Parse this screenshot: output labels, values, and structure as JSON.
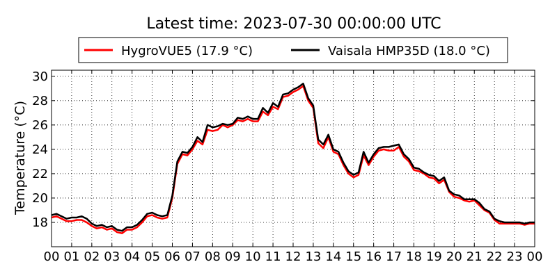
{
  "chart_data": {
    "type": "line",
    "title": "Latest time: 2023-07-30 00:00:00 UTC",
    "xlabel": "",
    "ylabel": "Temperature (°C)",
    "xlim": [
      0,
      24
    ],
    "ylim": [
      16,
      30.5
    ],
    "x_ticks": [
      0,
      1,
      2,
      3,
      4,
      5,
      6,
      7,
      8,
      9,
      10,
      11,
      12,
      13,
      14,
      15,
      16,
      17,
      18,
      19,
      20,
      21,
      22,
      23,
      24
    ],
    "x_tick_labels": [
      "00",
      "01",
      "02",
      "03",
      "04",
      "05",
      "06",
      "07",
      "08",
      "09",
      "10",
      "11",
      "12",
      "13",
      "14",
      "15",
      "16",
      "17",
      "18",
      "19",
      "20",
      "21",
      "22",
      "23",
      "00"
    ],
    "y_ticks": [
      18,
      20,
      22,
      24,
      26,
      28,
      30
    ],
    "y_tick_labels": [
      "18",
      "20",
      "22",
      "24",
      "26",
      "28",
      "30"
    ],
    "grid": true,
    "legend_position": "top",
    "series": [
      {
        "name": "HygroVUE5 (17.9 °C)",
        "color": "#ff0000",
        "x": [
          0,
          0.25,
          0.5,
          0.75,
          1,
          1.25,
          1.5,
          1.75,
          2,
          2.25,
          2.5,
          2.75,
          3,
          3.25,
          3.5,
          3.75,
          4,
          4.25,
          4.5,
          4.75,
          5,
          5.25,
          5.5,
          5.75,
          6,
          6.25,
          6.5,
          6.75,
          7,
          7.25,
          7.5,
          7.75,
          8,
          8.25,
          8.5,
          8.75,
          9,
          9.25,
          9.5,
          9.75,
          10,
          10.25,
          10.5,
          10.75,
          11,
          11.25,
          11.5,
          11.75,
          12,
          12.25,
          12.5,
          12.75,
          13,
          13.25,
          13.5,
          13.75,
          14,
          14.25,
          14.5,
          14.75,
          15,
          15.25,
          15.5,
          15.75,
          16,
          16.25,
          16.5,
          16.75,
          17,
          17.25,
          17.5,
          17.75,
          18,
          18.25,
          18.5,
          18.75,
          19,
          19.25,
          19.5,
          19.75,
          20,
          20.25,
          20.5,
          20.75,
          21,
          21.25,
          21.5,
          21.75,
          22,
          22.25,
          22.5,
          22.75,
          23,
          23.25,
          23.5,
          23.75,
          24
        ],
        "values": [
          18.4,
          18.5,
          18.3,
          18.1,
          18.1,
          18.2,
          18.2,
          18.0,
          17.7,
          17.5,
          17.6,
          17.4,
          17.5,
          17.2,
          17.1,
          17.4,
          17.4,
          17.6,
          18.0,
          18.5,
          18.6,
          18.4,
          18.3,
          18.4,
          20.0,
          22.8,
          23.6,
          23.5,
          24.0,
          24.7,
          24.4,
          25.6,
          25.5,
          25.6,
          26.0,
          25.8,
          26.0,
          26.4,
          26.3,
          26.5,
          26.3,
          26.3,
          27.1,
          26.8,
          27.5,
          27.3,
          28.3,
          28.4,
          28.7,
          28.9,
          29.2,
          28.0,
          27.4,
          24.5,
          24.1,
          25.0,
          23.8,
          23.6,
          22.7,
          22.0,
          21.7,
          21.9,
          23.5,
          22.7,
          23.4,
          23.9,
          24.0,
          23.9,
          23.9,
          24.2,
          23.4,
          23.0,
          22.3,
          22.2,
          22.0,
          21.7,
          21.6,
          21.2,
          21.5,
          20.5,
          20.1,
          20.0,
          19.8,
          19.7,
          19.8,
          19.4,
          19.0,
          18.8,
          18.2,
          17.9,
          17.9,
          17.9,
          17.9,
          17.9,
          17.8,
          17.9,
          17.9
        ]
      },
      {
        "name": "Vaisala HMP35D (18.0 °C)",
        "color": "#000000",
        "x": [
          0,
          0.25,
          0.5,
          0.75,
          1,
          1.25,
          1.5,
          1.75,
          2,
          2.25,
          2.5,
          2.75,
          3,
          3.25,
          3.5,
          3.75,
          4,
          4.25,
          4.5,
          4.75,
          5,
          5.25,
          5.5,
          5.75,
          6,
          6.25,
          6.5,
          6.75,
          7,
          7.25,
          7.5,
          7.75,
          8,
          8.25,
          8.5,
          8.75,
          9,
          9.25,
          9.5,
          9.75,
          10,
          10.25,
          10.5,
          10.75,
          11,
          11.25,
          11.5,
          11.75,
          12,
          12.25,
          12.5,
          12.75,
          13,
          13.25,
          13.5,
          13.75,
          14,
          14.25,
          14.5,
          14.75,
          15,
          15.25,
          15.5,
          15.75,
          16,
          16.25,
          16.5,
          16.75,
          17,
          17.25,
          17.5,
          17.75,
          18,
          18.25,
          18.5,
          18.75,
          19,
          19.25,
          19.5,
          19.75,
          20,
          20.25,
          20.5,
          20.75,
          21,
          21.25,
          21.5,
          21.75,
          22,
          22.25,
          22.5,
          22.75,
          23,
          23.25,
          23.5,
          23.75,
          24
        ],
        "values": [
          18.6,
          18.7,
          18.5,
          18.3,
          18.4,
          18.4,
          18.5,
          18.3,
          17.9,
          17.7,
          17.8,
          17.6,
          17.7,
          17.4,
          17.3,
          17.6,
          17.6,
          17.8,
          18.2,
          18.7,
          18.8,
          18.6,
          18.5,
          18.6,
          20.2,
          23.0,
          23.8,
          23.7,
          24.2,
          25.0,
          24.6,
          26.0,
          25.8,
          25.9,
          26.1,
          26.0,
          26.1,
          26.6,
          26.5,
          26.7,
          26.5,
          26.5,
          27.4,
          27.0,
          27.8,
          27.5,
          28.5,
          28.6,
          28.9,
          29.1,
          29.4,
          28.2,
          27.6,
          24.8,
          24.4,
          25.2,
          24.0,
          23.8,
          22.9,
          22.2,
          21.9,
          22.1,
          23.8,
          22.9,
          23.6,
          24.1,
          24.2,
          24.2,
          24.3,
          24.4,
          23.6,
          23.2,
          22.5,
          22.4,
          22.1,
          21.9,
          21.8,
          21.4,
          21.7,
          20.6,
          20.3,
          20.2,
          19.9,
          19.9,
          19.9,
          19.6,
          19.1,
          18.9,
          18.3,
          18.1,
          18.0,
          18.0,
          18.0,
          18.0,
          17.9,
          18.0,
          18.0
        ]
      }
    ]
  }
}
